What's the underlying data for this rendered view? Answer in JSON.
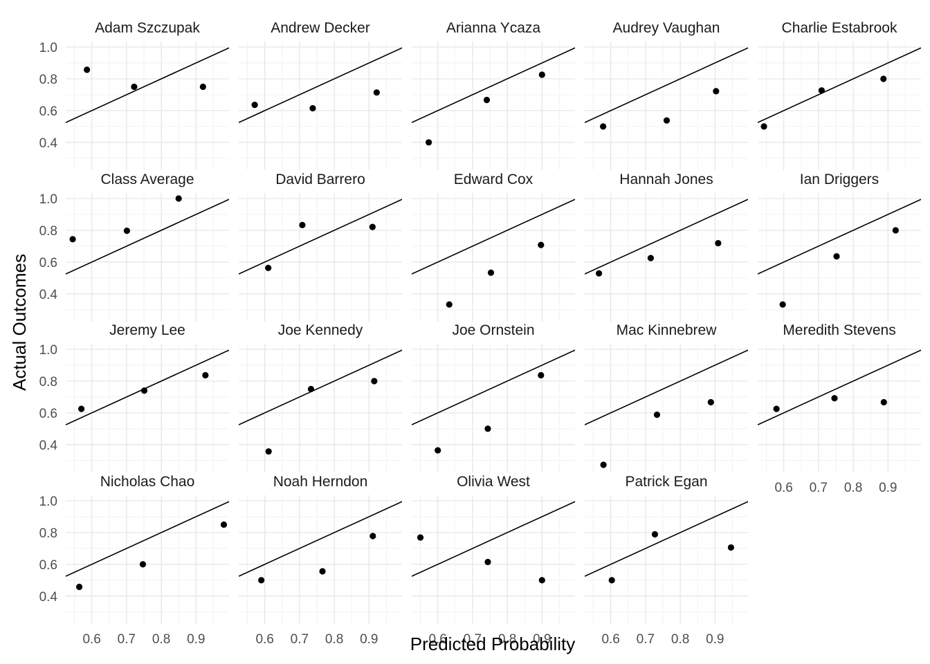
{
  "chart_data": {
    "type": "scatter",
    "xlabel": "Predicted Probability",
    "ylabel": "Actual Outcomes",
    "xlim": [
      0.525,
      0.995
    ],
    "ylim": [
      0.225,
      1.035
    ],
    "x_ticks": [
      "0.6",
      "0.7",
      "0.8",
      "0.9"
    ],
    "y_ticks": [
      "0.4",
      "0.6",
      "0.8",
      "1.0"
    ],
    "reference_line": "y = x",
    "grid": true,
    "point_color": "#000000",
    "line_color": "#000000",
    "panels": [
      {
        "title": "Adam Szczupak",
        "points": [
          [
            0.586,
            0.857
          ],
          [
            0.722,
            0.75
          ],
          [
            0.92,
            0.75
          ]
        ]
      },
      {
        "title": "Andrew Decker",
        "points": [
          [
            0.571,
            0.636
          ],
          [
            0.738,
            0.615
          ],
          [
            0.922,
            0.714
          ]
        ]
      },
      {
        "title": "Arianna Ycaza",
        "points": [
          [
            0.574,
            0.4
          ],
          [
            0.741,
            0.667
          ],
          [
            0.9,
            0.826
          ]
        ]
      },
      {
        "title": "Audrey Vaughan",
        "points": [
          [
            0.578,
            0.5
          ],
          [
            0.761,
            0.538
          ],
          [
            0.903,
            0.722
          ]
        ]
      },
      {
        "title": "Charlie Estabrook",
        "points": [
          [
            0.543,
            0.5
          ],
          [
            0.709,
            0.727
          ],
          [
            0.887,
            0.8
          ]
        ]
      },
      {
        "title": "Class Average",
        "points": [
          [
            0.545,
            0.744
          ],
          [
            0.701,
            0.797
          ],
          [
            0.85,
            1.0
          ]
        ]
      },
      {
        "title": "David Barrero",
        "points": [
          [
            0.61,
            0.563
          ],
          [
            0.708,
            0.833
          ],
          [
            0.91,
            0.821
          ]
        ]
      },
      {
        "title": "Edward Cox",
        "points": [
          [
            0.633,
            0.333
          ],
          [
            0.753,
            0.533
          ],
          [
            0.897,
            0.708
          ]
        ]
      },
      {
        "title": "Hannah Jones",
        "points": [
          [
            0.566,
            0.529
          ],
          [
            0.715,
            0.625
          ],
          [
            0.909,
            0.719
          ]
        ]
      },
      {
        "title": "Ian Driggers",
        "points": [
          [
            0.597,
            0.333
          ],
          [
            0.752,
            0.636
          ],
          [
            0.922,
            0.8
          ]
        ]
      },
      {
        "title": "Jeremy Lee",
        "points": [
          [
            0.57,
            0.625
          ],
          [
            0.751,
            0.74
          ],
          [
            0.927,
            0.837
          ]
        ]
      },
      {
        "title": "Joe Kennedy",
        "points": [
          [
            0.611,
            0.357
          ],
          [
            0.733,
            0.75
          ],
          [
            0.915,
            0.8
          ]
        ]
      },
      {
        "title": "Joe Ornstein",
        "points": [
          [
            0.6,
            0.364
          ],
          [
            0.744,
            0.5
          ],
          [
            0.897,
            0.837
          ]
        ]
      },
      {
        "title": "Mac Kinnebrew",
        "points": [
          [
            0.579,
            0.273
          ],
          [
            0.733,
            0.588
          ],
          [
            0.888,
            0.667
          ]
        ]
      },
      {
        "title": "Meredith Stevens",
        "points": [
          [
            0.579,
            0.625
          ],
          [
            0.746,
            0.692
          ],
          [
            0.888,
            0.667
          ]
        ]
      },
      {
        "title": "Nicholas Chao",
        "points": [
          [
            0.564,
            0.458
          ],
          [
            0.747,
            0.6
          ],
          [
            0.98,
            0.85
          ]
        ]
      },
      {
        "title": "Noah Herndon",
        "points": [
          [
            0.59,
            0.5
          ],
          [
            0.766,
            0.556
          ],
          [
            0.911,
            0.778
          ]
        ]
      },
      {
        "title": "Olivia West",
        "points": [
          [
            0.55,
            0.769
          ],
          [
            0.744,
            0.615
          ],
          [
            0.9,
            0.5
          ]
        ]
      },
      {
        "title": "Patrick Egan",
        "points": [
          [
            0.603,
            0.5
          ],
          [
            0.727,
            0.789
          ],
          [
            0.946,
            0.706
          ]
        ]
      }
    ]
  }
}
